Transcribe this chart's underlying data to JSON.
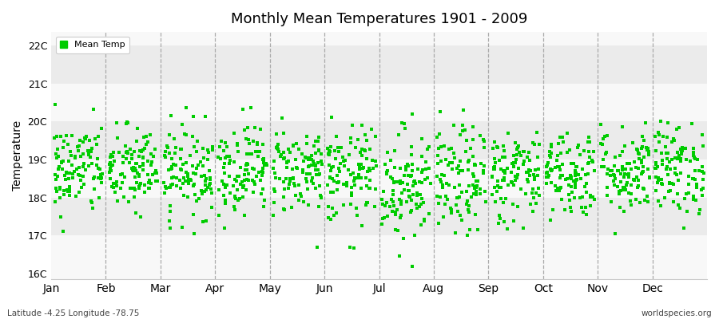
{
  "title": "Monthly Mean Temperatures 1901 - 2009",
  "ylabel": "Temperature",
  "xlabel_months": [
    "Jan",
    "Feb",
    "Mar",
    "Apr",
    "May",
    "Jun",
    "Jul",
    "Aug",
    "Sep",
    "Oct",
    "Nov",
    "Dec"
  ],
  "ytick_labels": [
    "16C",
    "17C",
    "18C",
    "19C",
    "20C",
    "21C",
    "22C"
  ],
  "ytick_values": [
    16,
    17,
    18,
    19,
    20,
    21,
    22
  ],
  "ylim": [
    15.85,
    22.35
  ],
  "legend_label": "Mean Temp",
  "dot_color": "#00cc00",
  "band_colors_even": "#ebebeb",
  "band_colors_odd": "#f8f8f8",
  "subtitle_left": "Latitude -4.25 Longitude -78.75",
  "subtitle_right": "worldspecies.org",
  "n_years": 109,
  "seed": 42,
  "monthly_means": [
    18.75,
    18.72,
    18.7,
    18.78,
    18.72,
    18.55,
    18.35,
    18.42,
    18.58,
    18.65,
    18.7,
    18.75
  ],
  "monthly_stds": [
    0.62,
    0.58,
    0.6,
    0.6,
    0.58,
    0.65,
    0.75,
    0.72,
    0.62,
    0.58,
    0.58,
    0.6
  ]
}
